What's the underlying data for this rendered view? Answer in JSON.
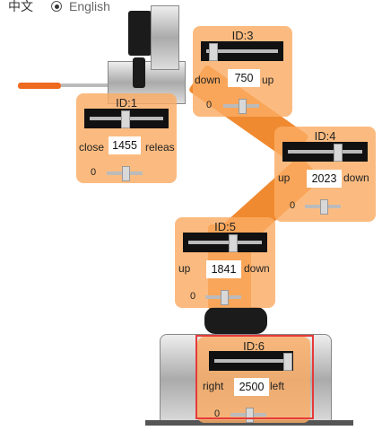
{
  "language": {
    "chinese_label": "中文",
    "english_label": "English",
    "selected": "English"
  },
  "joints": [
    {
      "id_label": "ID:1",
      "left_label": "close",
      "value": "1455",
      "right_label": "releas",
      "speed": "0",
      "position_fraction": 0.47
    },
    {
      "id_label": "ID:3",
      "left_label": "down",
      "value": "750",
      "right_label": "up",
      "speed": "0",
      "position_fraction": 0.1
    },
    {
      "id_label": "ID:4",
      "left_label": "up",
      "value": "2023",
      "right_label": "down",
      "speed": "0",
      "position_fraction": 0.65
    },
    {
      "id_label": "ID:5",
      "left_label": "up",
      "value": "1841",
      "right_label": "down",
      "speed": "0",
      "position_fraction": 0.59
    },
    {
      "id_label": "ID:6",
      "left_label": "right",
      "value": "2500",
      "right_label": "left",
      "speed": "0",
      "position_fraction": 0.95
    }
  ],
  "colors": {
    "panel": "#faac64",
    "highlight": "#e63a3a",
    "arm": "#f08a30"
  }
}
